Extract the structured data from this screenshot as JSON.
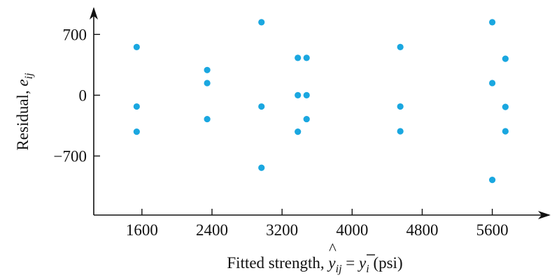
{
  "chart_data": {
    "type": "scatter",
    "title": "",
    "xlabel": {
      "prefix": "Fitted strength, ",
      "yhat": "y",
      "hat_mark": "^",
      "sub1": "ij",
      "equals": " = ",
      "ybar": "y",
      "sub2": "i",
      "suffix": " (psi)"
    },
    "ylabel": {
      "prefix": "Residual, ",
      "e": "e",
      "sub": "ij"
    },
    "xlim": [
      1050,
      6250
    ],
    "ylim": [
      -1380,
      1000
    ],
    "xticks": [
      1600,
      2400,
      3200,
      4000,
      4800,
      5600
    ],
    "xtick_labels": [
      "1600",
      "2400",
      "3200",
      "4000",
      "4800",
      "5600"
    ],
    "yticks": [
      700,
      0,
      -700
    ],
    "ytick_labels": [
      "700",
      "0",
      "−700"
    ],
    "grid": false,
    "marker_color": "#1aa7e0",
    "points": [
      {
        "x": 1540,
        "y": 555
      },
      {
        "x": 1540,
        "y": -130
      },
      {
        "x": 1540,
        "y": -420
      },
      {
        "x": 2345,
        "y": 290
      },
      {
        "x": 2345,
        "y": 140
      },
      {
        "x": 2345,
        "y": -275
      },
      {
        "x": 2965,
        "y": 840
      },
      {
        "x": 2965,
        "y": -130
      },
      {
        "x": 2965,
        "y": -835
      },
      {
        "x": 3380,
        "y": 430
      },
      {
        "x": 3380,
        "y": 0
      },
      {
        "x": 3380,
        "y": -420
      },
      {
        "x": 3480,
        "y": 430
      },
      {
        "x": 3480,
        "y": 0
      },
      {
        "x": 3480,
        "y": -275
      },
      {
        "x": 4550,
        "y": 555
      },
      {
        "x": 4550,
        "y": -130
      },
      {
        "x": 4550,
        "y": -415
      },
      {
        "x": 5600,
        "y": 840
      },
      {
        "x": 5600,
        "y": 140
      },
      {
        "x": 5600,
        "y": -975
      },
      {
        "x": 5750,
        "y": 420
      },
      {
        "x": 5750,
        "y": -135
      },
      {
        "x": 5750,
        "y": -415
      }
    ]
  }
}
